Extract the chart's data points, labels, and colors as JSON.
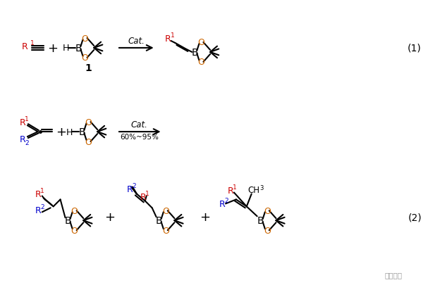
{
  "background_color": "#ffffff",
  "fig_width": 6.24,
  "fig_height": 4.06,
  "dpi": 100,
  "watermark_text": "有机合成",
  "reaction1_label": "(1)",
  "reaction2_label": "(2)",
  "compound1_label": "1",
  "red_color": "#cc0000",
  "blue_color": "#0000cc",
  "black_color": "#000000",
  "orange_color": "#cc6600"
}
